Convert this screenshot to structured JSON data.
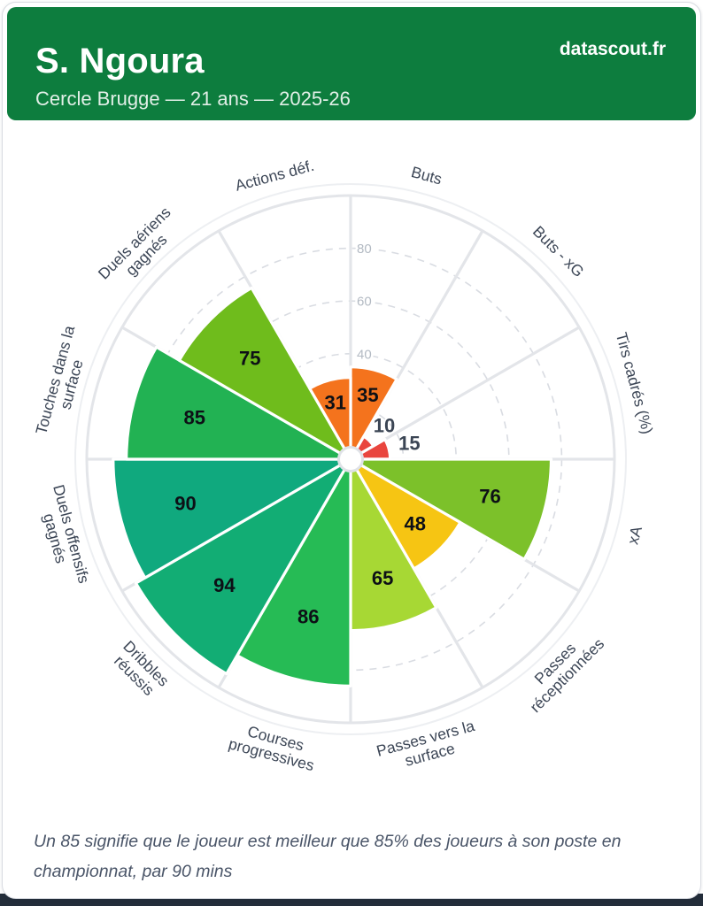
{
  "header": {
    "title": "S. Ngoura",
    "subtitle": "Cercle Brugge — 21 ans — 2025-26",
    "brand": "datascout.fr"
  },
  "footer": {
    "note": "Un 85 signifie que le joueur est meilleur que 85% des joueurs à son poste en championnat, par 90 mins"
  },
  "theme": {
    "header_green": "#0d7d3e",
    "bottom_strip": "#232d3a",
    "grid_color": "#e3e5e9",
    "ring_dash_color": "#d9dce2",
    "ring_label_color": "#b3bac3",
    "axis_label_color": "#3c4656",
    "value_inside_color": "#0d1016",
    "value_outside_color": "#3b4554"
  },
  "chart_data": {
    "type": "bar",
    "subtype": "polar-pizza",
    "title": "",
    "direction": "clockwise",
    "start_angle_deg": 0,
    "slice_width_deg": 30,
    "rlim": [
      0,
      100
    ],
    "ring_gridlines": [
      20,
      40,
      60,
      80
    ],
    "ring_tick_labels": [
      "40",
      "60",
      "80"
    ],
    "categories": [
      "Buts",
      "Buts - xG",
      "Tirs cadrés (%)",
      "xA",
      "Passes réceptionnées",
      "Passes vers la surface",
      "Courses progressives",
      "Dribbles réussis",
      "Duels offensifs gagnés",
      "Touches dans la surface",
      "Duels aériens gagnés",
      "Actions déf."
    ],
    "category_lines": [
      [
        "Buts"
      ],
      [
        "Buts - xG"
      ],
      [
        "Tirs cadrés (%)"
      ],
      [
        "xA"
      ],
      [
        "Passes",
        "réceptionnées"
      ],
      [
        "Passes vers la",
        "surface"
      ],
      [
        "Courses",
        "progressives"
      ],
      [
        "Dribbles",
        "réussis"
      ],
      [
        "Duels offensifs",
        "gagnés"
      ],
      [
        "Touches dans la",
        "surface"
      ],
      [
        "Duels aériens",
        "gagnés"
      ],
      [
        "Actions déf."
      ]
    ],
    "values": [
      35,
      10,
      15,
      76,
      48,
      65,
      86,
      94,
      90,
      85,
      75,
      31
    ],
    "colors": [
      "#f4731d",
      "#e9453e",
      "#e9453e",
      "#7cc12a",
      "#f6c513",
      "#a7d834",
      "#26bb55",
      "#12ad74",
      "#10a97e",
      "#22b253",
      "#6fbc1c",
      "#f4731d"
    ]
  }
}
